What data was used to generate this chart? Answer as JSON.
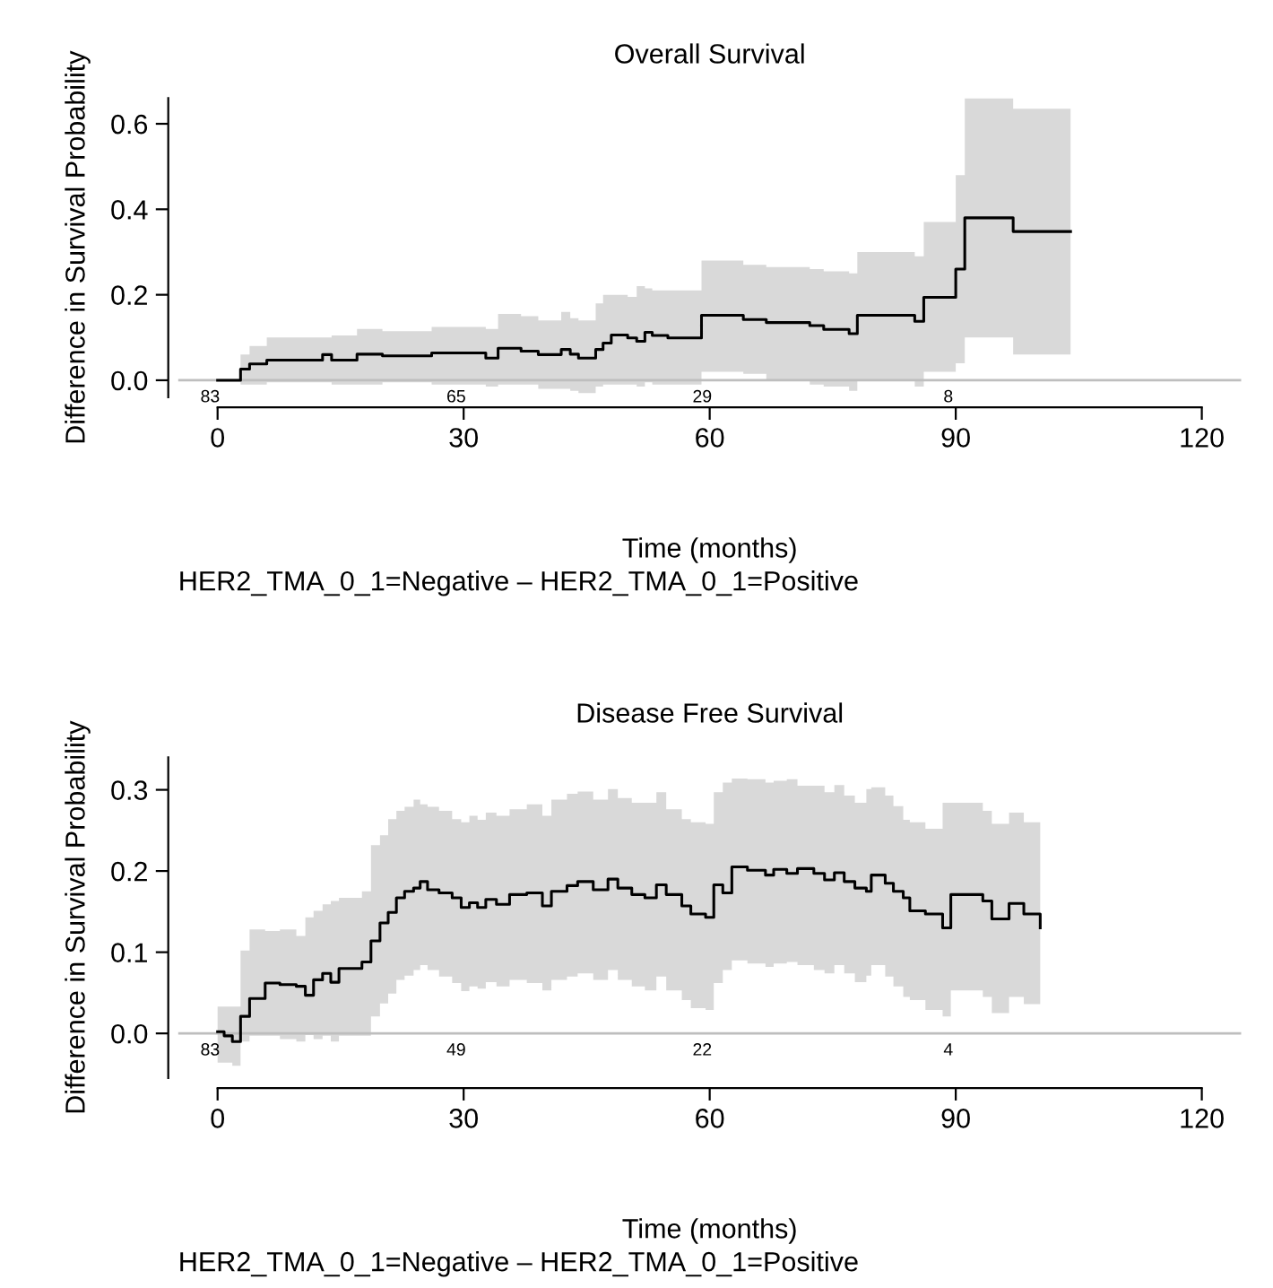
{
  "chart_data": [
    {
      "type": "step",
      "title": "Overall Survival",
      "xlabel": "Time (months)",
      "ylabel": "Difference in Survival Probability",
      "annotations": [
        "83",
        "65",
        "29",
        "8",
        "HER2_TMA_0_1=Negative – HER2_TMA_0_1=Positive"
      ],
      "xlim": [
        -4.8,
        124.8
      ],
      "ylim": [
        -0.04,
        0.66
      ],
      "xticks": [
        0,
        30,
        60,
        90,
        120
      ],
      "yticks": [
        {
          "value": 0,
          "label": "0.0"
        },
        {
          "value": 0.2,
          "label": "0.2"
        },
        {
          "value": 0.4,
          "label": "0.4"
        },
        {
          "value": 0.6,
          "label": "0.6"
        }
      ],
      "ref_lines": [
        {
          "axis": "y",
          "value": 0,
          "color": "#bebebe"
        }
      ],
      "series": [
        {
          "color": "#000000",
          "x": [
            0,
            2.8,
            3.9,
            6.0,
            12.8,
            13.9,
            17.0,
            20.1,
            26.1,
            32.7,
            34.2,
            37,
            39.1,
            41.9,
            43,
            44,
            46.1,
            47,
            48,
            50,
            51.1,
            52.1,
            53,
            54.9,
            59,
            64.1,
            66.9,
            72.2,
            73.9,
            77,
            78,
            85,
            86.1,
            90,
            91.1,
            97,
            104
          ],
          "values": [
            0,
            0.026,
            0.038,
            0.047,
            0.06,
            0.047,
            0.061,
            0.057,
            0.064,
            0.052,
            0.075,
            0.068,
            0.06,
            0.072,
            0.061,
            0.052,
            0.072,
            0.087,
            0.106,
            0.099,
            0.091,
            0.112,
            0.105,
            0.099,
            0.152,
            0.142,
            0.135,
            0.128,
            0.119,
            0.109,
            0.152,
            0.138,
            0.194,
            0.26,
            0.38,
            0.348,
            0.348
          ],
          "lower": [
            0,
            -0.01,
            -0.01,
            -0.005,
            -0.005,
            -0.01,
            -0.01,
            -0.005,
            -0.01,
            -0.015,
            -0.01,
            -0.01,
            -0.02,
            -0.02,
            -0.025,
            -0.03,
            -0.015,
            -0.01,
            -0.01,
            -0.01,
            -0.015,
            -0.005,
            -0.01,
            -0.01,
            0.02,
            0.015,
            0.0,
            -0.01,
            -0.015,
            -0.025,
            0.0,
            -0.015,
            0.02,
            0.04,
            0.1,
            0.06,
            0.06
          ],
          "upper": [
            0,
            0.06,
            0.08,
            0.1,
            0.1,
            0.105,
            0.12,
            0.115,
            0.125,
            0.12,
            0.155,
            0.15,
            0.14,
            0.16,
            0.145,
            0.14,
            0.18,
            0.2,
            0.2,
            0.195,
            0.22,
            0.215,
            0.21,
            0.21,
            0.28,
            0.27,
            0.265,
            0.26,
            0.255,
            0.25,
            0.3,
            0.29,
            0.37,
            0.48,
            0.66,
            0.635,
            0.635
          ]
        }
      ]
    },
    {
      "type": "step",
      "title": "Disease Free Survival",
      "xlabel": "Time (months)",
      "ylabel": "Difference in Survival Probability",
      "annotations": [
        "83",
        "49",
        "22",
        "4",
        "HER2_TMA_0_1=Negative – HER2_TMA_0_1=Positive"
      ],
      "xlim": [
        -4.8,
        124.8
      ],
      "ylim": [
        -0.055,
        0.34
      ],
      "xticks": [
        0,
        30,
        60,
        90,
        120
      ],
      "yticks": [
        {
          "value": 0,
          "label": "0.0"
        },
        {
          "value": 0.1,
          "label": "0.1"
        },
        {
          "value": 0.2,
          "label": "0.2"
        },
        {
          "value": 0.3,
          "label": "0.3"
        }
      ],
      "ref_lines": [
        {
          "axis": "y",
          "value": 0,
          "color": "#bebebe"
        }
      ],
      "series": [
        {
          "color": "#000000",
          "x": [
            0,
            0.8,
            1.8,
            2.8,
            3.9,
            5.8,
            7.6,
            9.6,
            10.7,
            11.7,
            12.8,
            13.8,
            14.8,
            17.6,
            18.7,
            19.8,
            20.8,
            21.8,
            22.8,
            23.9,
            24.7,
            25.6,
            27,
            28.6,
            29.7,
            30.7,
            31.7,
            32.7,
            34,
            35.6,
            37.7,
            39.6,
            40.7,
            42.6,
            43.9,
            45.8,
            47.6,
            48.8,
            50.5,
            52.1,
            53.5,
            54.7,
            56.6,
            57.7,
            59.5,
            60.5,
            61.6,
            62.7,
            64.6,
            66.8,
            67.8,
            69.4,
            70.7,
            72.7,
            74,
            75.2,
            76.4,
            77.7,
            79.1,
            79.7,
            81.4,
            82.4,
            83.6,
            84.4,
            86.3,
            88.4,
            89.4,
            93.3,
            94.4,
            96.5,
            98.3,
            100.3
          ],
          "values": [
            0.002,
            -0.003,
            -0.01,
            0.021,
            0.043,
            0.062,
            0.06,
            0.058,
            0.047,
            0.066,
            0.074,
            0.063,
            0.08,
            0.088,
            0.114,
            0.136,
            0.149,
            0.167,
            0.175,
            0.179,
            0.187,
            0.177,
            0.173,
            0.167,
            0.155,
            0.161,
            0.155,
            0.165,
            0.159,
            0.171,
            0.173,
            0.157,
            0.175,
            0.182,
            0.187,
            0.177,
            0.19,
            0.179,
            0.171,
            0.167,
            0.183,
            0.171,
            0.157,
            0.147,
            0.143,
            0.183,
            0.173,
            0.205,
            0.201,
            0.195,
            0.202,
            0.197,
            0.203,
            0.197,
            0.189,
            0.198,
            0.187,
            0.179,
            0.175,
            0.195,
            0.185,
            0.175,
            0.167,
            0.151,
            0.147,
            0.13,
            0.171,
            0.163,
            0.141,
            0.16,
            0.147,
            0.13
          ],
          "lower": [
            -0.036,
            -0.036,
            -0.04,
            -0.01,
            -0.003,
            -0.003,
            -0.007,
            -0.01,
            -0.002,
            -0.007,
            -0.003,
            -0.01,
            -0.003,
            -0.003,
            0.021,
            0.037,
            0.049,
            0.066,
            0.071,
            0.078,
            0.084,
            0.078,
            0.07,
            0.062,
            0.052,
            0.058,
            0.055,
            0.063,
            0.058,
            0.066,
            0.062,
            0.053,
            0.066,
            0.07,
            0.074,
            0.066,
            0.078,
            0.066,
            0.058,
            0.053,
            0.07,
            0.053,
            0.041,
            0.031,
            0.029,
            0.062,
            0.078,
            0.09,
            0.086,
            0.082,
            0.086,
            0.088,
            0.084,
            0.078,
            0.074,
            0.084,
            0.074,
            0.063,
            0.071,
            0.084,
            0.07,
            0.058,
            0.045,
            0.041,
            0.029,
            0.021,
            0.053,
            0.045,
            0.025,
            0.045,
            0.036,
            0.036
          ],
          "upper": [
            0.033,
            0.033,
            0.033,
            0.102,
            0.128,
            0.126,
            0.128,
            0.12,
            0.143,
            0.151,
            0.159,
            0.163,
            0.167,
            0.175,
            0.232,
            0.244,
            0.264,
            0.274,
            0.279,
            0.288,
            0.282,
            0.279,
            0.274,
            0.264,
            0.26,
            0.268,
            0.263,
            0.272,
            0.268,
            0.276,
            0.282,
            0.268,
            0.288,
            0.295,
            0.298,
            0.288,
            0.301,
            0.29,
            0.284,
            0.284,
            0.297,
            0.276,
            0.264,
            0.26,
            0.258,
            0.297,
            0.309,
            0.314,
            0.313,
            0.309,
            0.311,
            0.313,
            0.305,
            0.305,
            0.297,
            0.306,
            0.293,
            0.284,
            0.301,
            0.303,
            0.293,
            0.28,
            0.263,
            0.26,
            0.252,
            0.284,
            0.284,
            0.274,
            0.258,
            0.272,
            0.26,
            0.244
          ]
        }
      ]
    }
  ]
}
